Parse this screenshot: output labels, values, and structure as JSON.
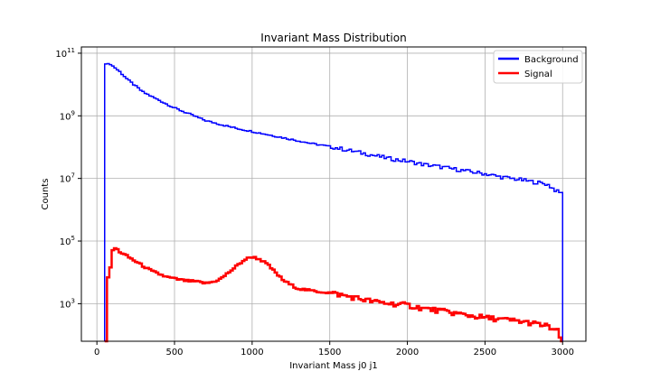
{
  "chart_data": {
    "type": "line",
    "title": "Invariant Mass Distribution",
    "xlabel": "Invariant Mass j0 j1",
    "ylabel": "Counts",
    "xlim": [
      -100,
      3150
    ],
    "ylim_log10": [
      1.8,
      11.2
    ],
    "yscale": "log",
    "grid": true,
    "legend_position": "top-right",
    "x_ticks": [
      {
        "value": 0,
        "label": "0"
      },
      {
        "value": 500,
        "label": "500"
      },
      {
        "value": 1000,
        "label": "1000"
      },
      {
        "value": 1500,
        "label": "1500"
      },
      {
        "value": 2000,
        "label": "2000"
      },
      {
        "value": 2500,
        "label": "2500"
      },
      {
        "value": 3000,
        "label": "3000"
      }
    ],
    "y_ticks": [
      {
        "exp": 3,
        "label_base": "10",
        "label_exp": "3"
      },
      {
        "exp": 5,
        "label_base": "10",
        "label_exp": "5"
      },
      {
        "exp": 7,
        "label_base": "10",
        "label_exp": "7"
      },
      {
        "exp": 9,
        "label_base": "10",
        "label_exp": "9"
      },
      {
        "exp": 11,
        "label_base": "10",
        "label_exp": "11"
      }
    ],
    "series": [
      {
        "name": "Background",
        "color": "#0000ff",
        "x_step_edges": [
          50,
          3000
        ],
        "points_log10": [
          [
            50,
            10.65
          ],
          [
            75,
            10.67
          ],
          [
            100,
            10.6
          ],
          [
            150,
            10.4
          ],
          [
            200,
            10.15
          ],
          [
            250,
            9.95
          ],
          [
            300,
            9.75
          ],
          [
            400,
            9.5
          ],
          [
            500,
            9.25
          ],
          [
            600,
            9.05
          ],
          [
            700,
            8.85
          ],
          [
            800,
            8.72
          ],
          [
            900,
            8.6
          ],
          [
            1000,
            8.5
          ],
          [
            1100,
            8.4
          ],
          [
            1200,
            8.3
          ],
          [
            1300,
            8.2
          ],
          [
            1400,
            8.1
          ],
          [
            1500,
            8.02
          ],
          [
            1600,
            7.92
          ],
          [
            1700,
            7.82
          ],
          [
            1800,
            7.72
          ],
          [
            1900,
            7.62
          ],
          [
            2000,
            7.55
          ],
          [
            2100,
            7.45
          ],
          [
            2200,
            7.38
          ],
          [
            2300,
            7.3
          ],
          [
            2400,
            7.22
          ],
          [
            2500,
            7.15
          ],
          [
            2600,
            7.05
          ],
          [
            2700,
            6.98
          ],
          [
            2800,
            6.9
          ],
          [
            2900,
            6.82
          ],
          [
            2975,
            6.55
          ],
          [
            3000,
            6.55
          ]
        ]
      },
      {
        "name": "Signal",
        "color": "#ff0000",
        "x_step_edges": [
          50,
          3000
        ],
        "points_log10": [
          [
            60,
            1.5
          ],
          [
            70,
            3.8
          ],
          [
            85,
            4.05
          ],
          [
            100,
            4.7
          ],
          [
            120,
            4.78
          ],
          [
            150,
            4.65
          ],
          [
            200,
            4.5
          ],
          [
            250,
            4.35
          ],
          [
            300,
            4.2
          ],
          [
            350,
            4.05
          ],
          [
            400,
            3.95
          ],
          [
            450,
            3.85
          ],
          [
            500,
            3.8
          ],
          [
            550,
            3.75
          ],
          [
            600,
            3.72
          ],
          [
            650,
            3.7
          ],
          [
            700,
            3.65
          ],
          [
            750,
            3.7
          ],
          [
            800,
            3.8
          ],
          [
            850,
            4.0
          ],
          [
            900,
            4.2
          ],
          [
            950,
            4.4
          ],
          [
            1000,
            4.5
          ],
          [
            1050,
            4.42
          ],
          [
            1100,
            4.25
          ],
          [
            1150,
            4.0
          ],
          [
            1200,
            3.75
          ],
          [
            1250,
            3.6
          ],
          [
            1300,
            3.48
          ],
          [
            1400,
            3.4
          ],
          [
            1500,
            3.35
          ],
          [
            1600,
            3.25
          ],
          [
            1700,
            3.15
          ],
          [
            1800,
            3.05
          ],
          [
            1900,
            3.0
          ],
          [
            2000,
            2.95
          ],
          [
            2100,
            2.85
          ],
          [
            2200,
            2.78
          ],
          [
            2300,
            2.7
          ],
          [
            2400,
            2.62
          ],
          [
            2500,
            2.55
          ],
          [
            2600,
            2.5
          ],
          [
            2700,
            2.45
          ],
          [
            2800,
            2.38
          ],
          [
            2900,
            2.28
          ],
          [
            2975,
            2.1
          ],
          [
            3000,
            1.5
          ]
        ]
      }
    ]
  }
}
